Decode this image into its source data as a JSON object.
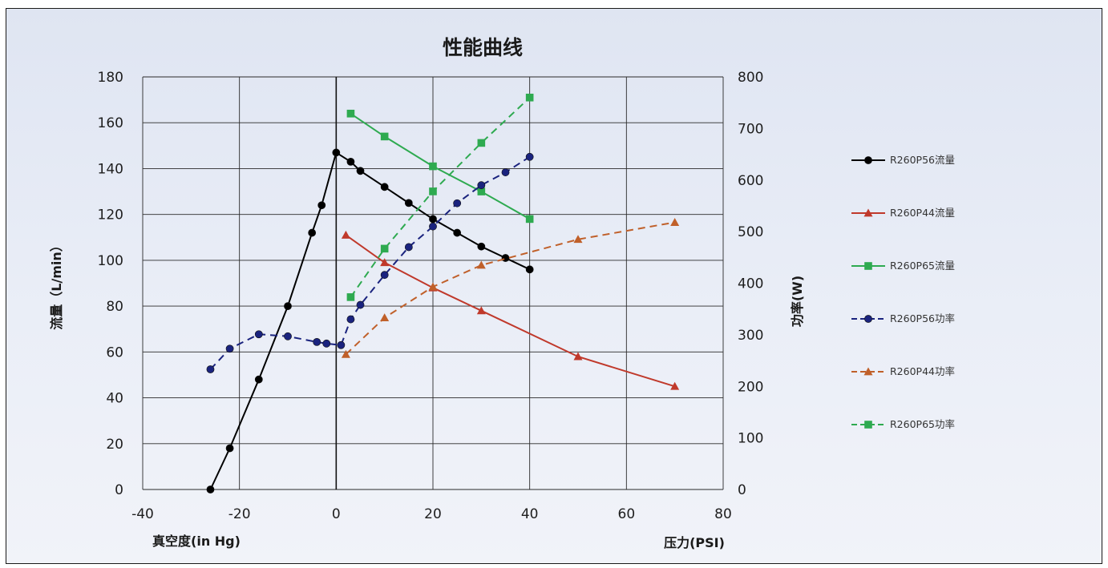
{
  "chart_data": {
    "type": "line",
    "title": "性能曲线",
    "xlabel_left": "真空度(in Hg)",
    "xlabel_right": "压力(PSI)",
    "ylabel_left": "流量（L/min）",
    "ylabel_right": "功率(W)",
    "xlim": [
      -40,
      80
    ],
    "ylim_left": [
      0,
      180
    ],
    "ylim_right": [
      0,
      800
    ],
    "x_ticks": [
      "-40",
      "-20",
      "0",
      "20",
      "40",
      "60",
      "80"
    ],
    "y_left_ticks": [
      "0",
      "20",
      "40",
      "60",
      "80",
      "100",
      "120",
      "140",
      "160",
      "180"
    ],
    "y_right_ticks": [
      "0",
      "100",
      "200",
      "300",
      "400",
      "500",
      "600",
      "700",
      "800"
    ],
    "grid": true,
    "legend_position": "right",
    "series": [
      {
        "name": "R260P56流量",
        "axis": "left",
        "color": "#000000",
        "marker": "circle",
        "dash": "solid",
        "points": [
          [
            -26,
            0
          ],
          [
            -22,
            18
          ],
          [
            -16,
            48
          ],
          [
            -10,
            80
          ],
          [
            -5,
            112
          ],
          [
            -3,
            124
          ],
          [
            0,
            147
          ],
          [
            3,
            143
          ],
          [
            5,
            139
          ],
          [
            10,
            132
          ],
          [
            15,
            125
          ],
          [
            20,
            118
          ],
          [
            25,
            112
          ],
          [
            30,
            106
          ],
          [
            35,
            101
          ],
          [
            40,
            96
          ]
        ]
      },
      {
        "name": "R260P44流量",
        "axis": "left",
        "color": "#c0392b",
        "marker": "triangle",
        "dash": "solid",
        "points": [
          [
            2,
            111
          ],
          [
            10,
            99
          ],
          [
            20,
            88
          ],
          [
            30,
            78
          ],
          [
            50,
            58
          ],
          [
            70,
            45
          ]
        ]
      },
      {
        "name": "R260P65流量",
        "axis": "left",
        "color": "#2eaa50",
        "marker": "square",
        "dash": "solid",
        "points": [
          [
            3,
            164
          ],
          [
            10,
            154
          ],
          [
            20,
            141
          ],
          [
            30,
            130
          ],
          [
            40,
            118
          ]
        ]
      },
      {
        "name": "R260P56功率",
        "axis": "right",
        "color": "#1a237e",
        "marker": "circle",
        "dash": "dashed",
        "points": [
          [
            -26,
            233
          ],
          [
            -22,
            273
          ],
          [
            -16,
            301
          ],
          [
            -10,
            297
          ],
          [
            -4,
            286
          ],
          [
            -2,
            283
          ],
          [
            1,
            280
          ],
          [
            3,
            330
          ],
          [
            5,
            358
          ],
          [
            10,
            416
          ],
          [
            15,
            470
          ],
          [
            20,
            510
          ],
          [
            25,
            555
          ],
          [
            30,
            590
          ],
          [
            35,
            615
          ],
          [
            40,
            645
          ]
        ]
      },
      {
        "name": "R260P44功率",
        "axis": "right",
        "color": "#c0602a",
        "marker": "triangle",
        "dash": "dashed",
        "points": [
          [
            2,
            262
          ],
          [
            10,
            333
          ],
          [
            20,
            393
          ],
          [
            30,
            435
          ],
          [
            50,
            485
          ],
          [
            70,
            518
          ]
        ]
      },
      {
        "name": "R260P65功率",
        "axis": "right",
        "color": "#2eaa50",
        "marker": "square",
        "dash": "dashed",
        "points": [
          [
            3,
            373
          ],
          [
            10,
            467
          ],
          [
            20,
            578
          ],
          [
            30,
            672
          ],
          [
            40,
            760
          ]
        ]
      }
    ]
  }
}
